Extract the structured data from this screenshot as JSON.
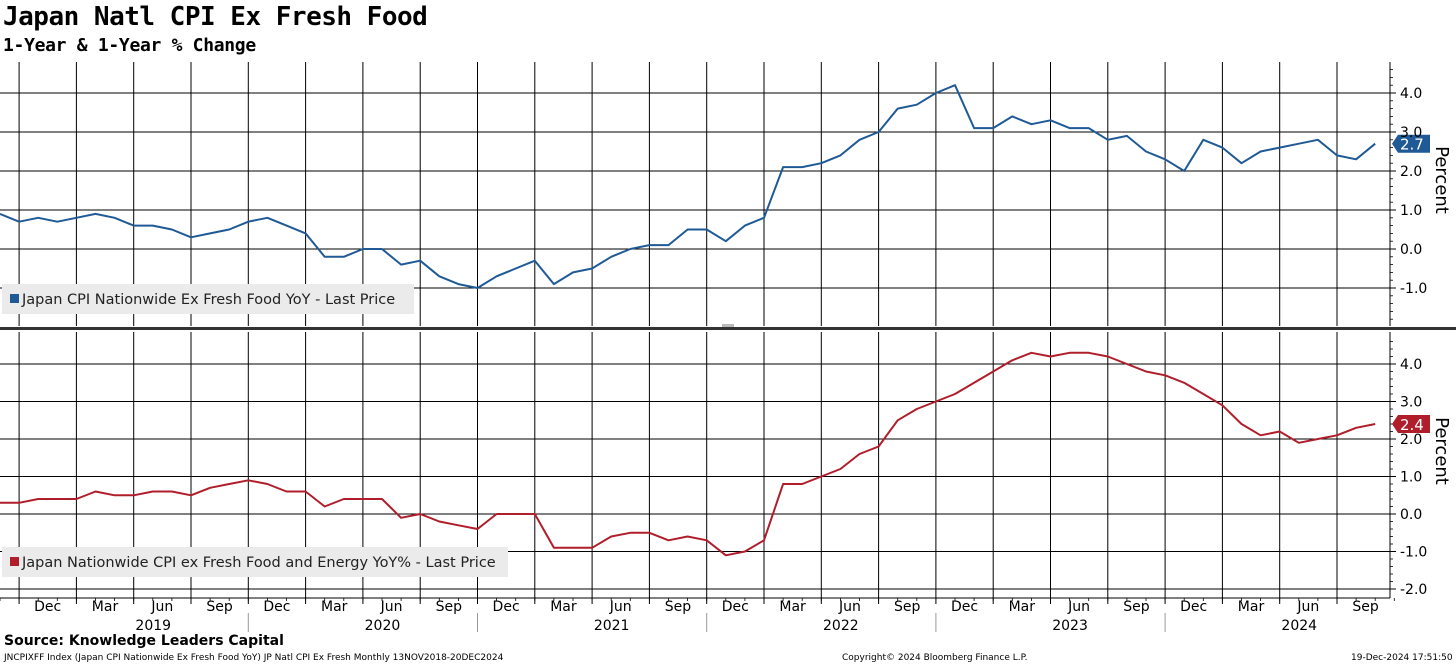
{
  "header": {
    "title": "Japan Natl CPI Ex Fresh Food",
    "subtitle": "1-Year & 1-Year % Change"
  },
  "footer": {
    "source": "Source: Knowledge Leaders Capital",
    "ticker_line": "JNCPIXFF Index (Japan CPI Nationwide Ex Fresh Food YoY) JP Natl CPI Ex Fresh  Monthly 13NOV2018-20DEC2024",
    "copyright": "Copyright© 2024 Bloomberg Finance L.P.",
    "timestamp": "19-Dec-2024 17:51:50"
  },
  "colors": {
    "series1": "#1F5A96",
    "series2": "#B01E2B",
    "grid": "#000000",
    "legend_bg": "#EBEBEB"
  },
  "chart_data": [
    {
      "type": "line",
      "panel": "top",
      "ylabel": "Percent",
      "ylim": [
        -1.9,
        4.9
      ],
      "yticks": [
        "4.0",
        "3.0",
        "2.0",
        "1.0",
        "0.0",
        "-1.0"
      ],
      "legend": "Japan CPI Nationwide Ex Fresh Food YoY - Last Price",
      "last_value_label": "2.7",
      "series": [
        {
          "name": "Japan CPI Nationwide Ex Fresh Food YoY - Last Price",
          "start": "2018-11",
          "values": [
            0.9,
            0.7,
            0.8,
            0.7,
            0.8,
            0.9,
            0.8,
            0.6,
            0.6,
            0.5,
            0.3,
            0.4,
            0.5,
            0.7,
            0.8,
            0.6,
            0.4,
            -0.2,
            -0.2,
            0.0,
            0.0,
            -0.4,
            -0.3,
            -0.7,
            -0.9,
            -1.0,
            -0.7,
            -0.5,
            -0.3,
            -0.9,
            -0.6,
            -0.5,
            -0.2,
            0.0,
            0.1,
            0.1,
            0.5,
            0.5,
            0.2,
            0.6,
            0.8,
            2.1,
            2.1,
            2.2,
            2.4,
            2.8,
            3.0,
            3.6,
            3.7,
            4.0,
            4.2,
            3.1,
            3.1,
            3.4,
            3.2,
            3.3,
            3.1,
            3.1,
            2.8,
            2.9,
            2.5,
            2.3,
            2.0,
            2.8,
            2.6,
            2.2,
            2.5,
            2.6,
            2.7,
            2.8,
            2.4,
            2.3,
            2.7
          ]
        }
      ]
    },
    {
      "type": "line",
      "panel": "bottom",
      "ylabel": "Percent",
      "ylim": [
        -2.3,
        4.9
      ],
      "yticks": [
        "4.0",
        "3.0",
        "2.0",
        "1.0",
        "0.0",
        "-1.0",
        "-2.0"
      ],
      "legend": "Japan Nationwide CPI ex Fresh Food and Energy YoY% - Last Price",
      "last_value_label": "2.4",
      "series": [
        {
          "name": "Japan Nationwide CPI ex Fresh Food and Energy YoY% - Last Price",
          "start": "2018-11",
          "values": [
            0.3,
            0.3,
            0.4,
            0.4,
            0.4,
            0.6,
            0.5,
            0.5,
            0.6,
            0.6,
            0.5,
            0.7,
            0.8,
            0.9,
            0.8,
            0.6,
            0.6,
            0.2,
            0.4,
            0.4,
            0.4,
            -0.1,
            0.0,
            -0.2,
            -0.3,
            -0.4,
            0.0,
            0.0,
            0.0,
            -0.9,
            -0.9,
            -0.9,
            -0.6,
            -0.5,
            -0.5,
            -0.7,
            -0.6,
            -0.7,
            -1.1,
            -1.0,
            -0.7,
            0.8,
            0.8,
            1.0,
            1.2,
            1.6,
            1.8,
            2.5,
            2.8,
            3.0,
            3.2,
            3.5,
            3.8,
            4.1,
            4.3,
            4.2,
            4.3,
            4.3,
            4.2,
            4.0,
            3.8,
            3.7,
            3.5,
            3.2,
            2.9,
            2.4,
            2.1,
            2.2,
            1.9,
            2.0,
            2.1,
            2.3,
            2.4
          ]
        }
      ]
    }
  ],
  "x_axis": {
    "months": [
      "Dec",
      "Mar",
      "Jun",
      "Sep",
      "Dec",
      "Mar",
      "Jun",
      "Sep",
      "Dec",
      "Mar",
      "Jun",
      "Sep",
      "Dec",
      "Mar",
      "Jun",
      "Sep",
      "Dec",
      "Mar",
      "Jun",
      "Sep",
      "Dec",
      "Mar",
      "Jun",
      "Sep"
    ],
    "years": [
      "2019",
      "2020",
      "2021",
      "2022",
      "2023",
      "2024"
    ]
  }
}
